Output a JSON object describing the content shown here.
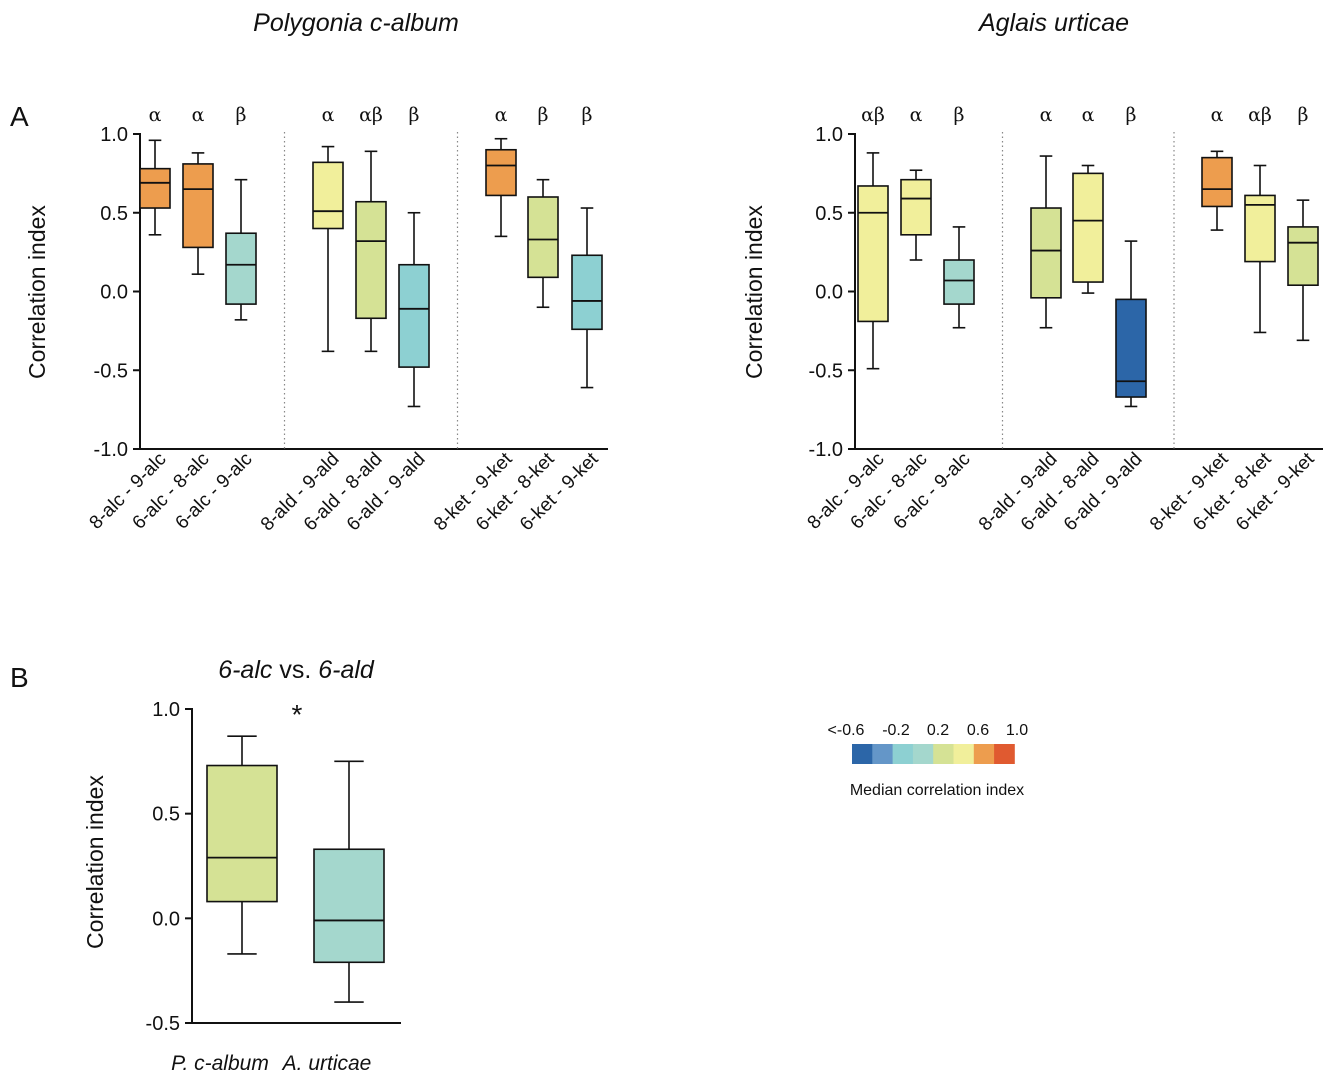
{
  "panel_labels": {
    "a": "A",
    "b": "B"
  },
  "legend": {
    "ticks": [
      "<-0.6",
      "-0.2",
      "0.2",
      "0.6",
      "1.0"
    ],
    "colors": [
      "#2c66a8",
      "#6496c8",
      "#8dd0d2",
      "#a4d7cd",
      "#d5e295",
      "#f1ef9b",
      "#ed9d4e",
      "#e05a30"
    ],
    "title": "Median correlation index"
  },
  "chart_data": [
    {
      "type": "box",
      "title": "Polygonia c-album",
      "ylabel": "Correlation index",
      "ylim": [
        -1.0,
        1.0
      ],
      "yticks": [
        "1.0",
        "0.5",
        "0.0",
        "-0.5",
        "-1.0"
      ],
      "categories": [
        "8-alc - 9-alc",
        "6-alc - 8-alc",
        "6-alc - 9-alc",
        "8-ald - 9-ald",
        "6-ald - 8-ald",
        "6-ald - 9-ald",
        "8-ket - 9-ket",
        "6-ket - 8-ket",
        "6-ket - 9-ket"
      ],
      "group_labels": [
        "α",
        "α",
        "β",
        "α",
        "αβ",
        "β",
        "α",
        "β",
        "β"
      ],
      "colors": [
        "#ed9d4e",
        "#ed9d4e",
        "#a4d7cd",
        "#f1ef9b",
        "#d5e295",
        "#8dd0d2",
        "#ed9d4e",
        "#d5e295",
        "#8dd0d2"
      ],
      "min": [
        0.36,
        0.11,
        -0.18,
        -0.38,
        -0.38,
        -0.73,
        0.35,
        -0.1,
        -0.61
      ],
      "q1": [
        0.53,
        0.28,
        -0.08,
        0.4,
        -0.17,
        -0.48,
        0.61,
        0.09,
        -0.24
      ],
      "median": [
        0.69,
        0.65,
        0.17,
        0.51,
        0.32,
        -0.11,
        0.8,
        0.33,
        -0.06
      ],
      "q3": [
        0.78,
        0.81,
        0.37,
        0.82,
        0.57,
        0.17,
        0.9,
        0.6,
        0.23
      ],
      "max": [
        0.96,
        0.88,
        0.71,
        0.92,
        0.89,
        0.5,
        0.97,
        0.71,
        0.53
      ],
      "separators_after": [
        3,
        6
      ]
    },
    {
      "type": "box",
      "title": "Aglais urticae",
      "ylabel": "Correlation index",
      "ylim": [
        -1.0,
        1.0
      ],
      "yticks": [
        "1.0",
        "0.5",
        "0.0",
        "-0.5",
        "-1.0"
      ],
      "categories": [
        "8-alc - 9-alc",
        "6-alc - 8-alc",
        "6-alc - 9-alc",
        "8-ald - 9-ald",
        "6-ald - 8-ald",
        "6-ald - 9-ald",
        "8-ket - 9-ket",
        "6-ket - 8-ket",
        "6-ket - 9-ket"
      ],
      "group_labels": [
        "αβ",
        "α",
        "β",
        "α",
        "α",
        "β",
        "α",
        "αβ",
        "β"
      ],
      "colors": [
        "#f1ef9b",
        "#f1ef9b",
        "#a4d7cd",
        "#d5e295",
        "#f1ef9b",
        "#2c66a8",
        "#ed9d4e",
        "#f1ef9b",
        "#d5e295"
      ],
      "min": [
        -0.49,
        0.2,
        -0.23,
        -0.23,
        -0.01,
        -0.73,
        0.39,
        -0.26,
        -0.31
      ],
      "q1": [
        -0.19,
        0.36,
        -0.08,
        -0.04,
        0.06,
        -0.67,
        0.54,
        0.19,
        0.04
      ],
      "median": [
        0.5,
        0.59,
        0.07,
        0.26,
        0.45,
        -0.57,
        0.65,
        0.55,
        0.31
      ],
      "q3": [
        0.67,
        0.71,
        0.2,
        0.53,
        0.75,
        -0.05,
        0.85,
        0.61,
        0.41
      ],
      "max": [
        0.88,
        0.77,
        0.41,
        0.86,
        0.8,
        0.32,
        0.89,
        0.8,
        0.58
      ],
      "separators_after": [
        3,
        6
      ]
    },
    {
      "type": "box",
      "title_parts": [
        "6-alc",
        " vs. ",
        "6-ald"
      ],
      "ylabel": "Correlation index",
      "ylim": [
        -0.5,
        1.0
      ],
      "yticks": [
        "1.0",
        "0.5",
        "0.0",
        "-0.5"
      ],
      "categories": [
        "P. c-album",
        "A. urticae"
      ],
      "colors": [
        "#d5e295",
        "#a4d7cd"
      ],
      "min": [
        -0.17,
        -0.4
      ],
      "q1": [
        0.08,
        -0.21
      ],
      "median": [
        0.29,
        -0.01
      ],
      "q3": [
        0.73,
        0.33
      ],
      "max": [
        0.87,
        0.75
      ],
      "annotation": "*"
    }
  ]
}
